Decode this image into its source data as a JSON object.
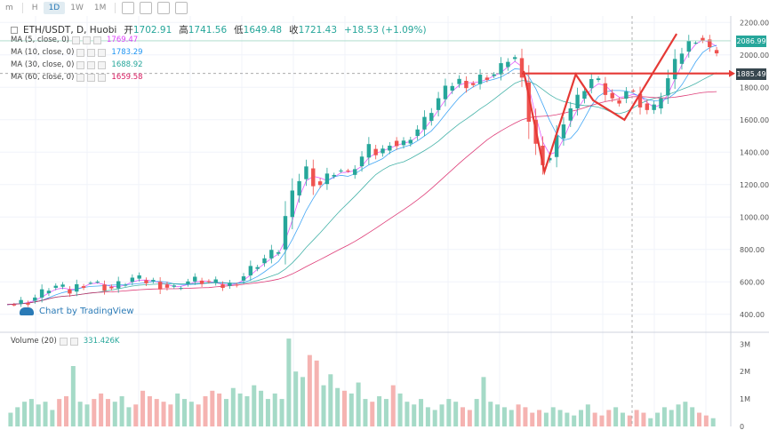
{
  "toolbar": {
    "items": [
      "m",
      "H",
      "1D",
      "1W",
      "1M"
    ],
    "active": "1D"
  },
  "header": {
    "symbol": "ETH/USDT, D, Huobi",
    "open_label": "开",
    "open": "1702.91",
    "high_label": "高",
    "high": "1741.56",
    "low_label": "低",
    "low": "1649.48",
    "close_label": "收",
    "close": "1721.43",
    "change": "+18.53 (+1.09%)"
  },
  "indicators": [
    {
      "label": "MA (5, close, 0)",
      "value": "1769.47",
      "color": "#e040fb"
    },
    {
      "label": "MA (10, close, 0)",
      "value": "1783.29",
      "color": "#2196f3"
    },
    {
      "label": "MA (30, close, 0)",
      "value": "1688.92",
      "color": "#26a69a"
    },
    {
      "label": "MA (60, close, 0)",
      "value": "1659.58",
      "color": "#d81b60"
    }
  ],
  "watermark": "Chart by TradingView",
  "volume": {
    "label": "Volume (20)",
    "value": "331.426K"
  },
  "price_tags": {
    "current": "2086.99",
    "resistance": "1885.49"
  },
  "colors": {
    "up": "#26a69a",
    "down": "#ef5350",
    "vol_up": "#a5dac7",
    "vol_down": "#f5b3b1",
    "ma5": "#e040fb",
    "ma10": "#2196f3",
    "ma30": "#26a69a",
    "ma60": "#d81b60",
    "annotation": "#e53935",
    "crosshair": "#9e9e9e"
  },
  "chart_data": {
    "type": "candlestick",
    "ylim": [
      300,
      2240
    ],
    "yticks": [
      400,
      600,
      800,
      1000,
      1200,
      1400,
      1600,
      1800,
      2000,
      2200
    ],
    "ytick_labels": [
      "400.00",
      "600.00",
      "800.00",
      "1000.00",
      "1200.00",
      "1400.00",
      "1600.00",
      "1800.00",
      "2000.00",
      "2200.00"
    ],
    "vol_ticks": [
      0,
      1,
      2,
      3
    ],
    "vol_tick_labels": [
      "0",
      "1M",
      "2M",
      "3M"
    ],
    "vol_max": 3.3,
    "close_path": [
      [
        0,
        460
      ],
      [
        8,
        470
      ],
      [
        14,
        490
      ],
      [
        20,
        530
      ],
      [
        26,
        580
      ],
      [
        30,
        560
      ],
      [
        36,
        540
      ],
      [
        42,
        590
      ],
      [
        48,
        600
      ],
      [
        54,
        575
      ],
      [
        60,
        560
      ],
      [
        66,
        590
      ],
      [
        72,
        620
      ],
      [
        78,
        605
      ],
      [
        84,
        600
      ],
      [
        90,
        575
      ],
      [
        96,
        560
      ],
      [
        102,
        600
      ],
      [
        110,
        610
      ],
      [
        118,
        590
      ],
      [
        126,
        570
      ],
      [
        134,
        620
      ],
      [
        142,
        700
      ],
      [
        150,
        760
      ],
      [
        156,
        800
      ],
      [
        160,
        1000
      ],
      [
        166,
        1200
      ],
      [
        172,
        1300
      ],
      [
        178,
        1180
      ],
      [
        184,
        1250
      ],
      [
        190,
        1300
      ],
      [
        196,
        1260
      ],
      [
        202,
        1340
      ],
      [
        208,
        1420
      ],
      [
        214,
        1380
      ],
      [
        220,
        1470
      ],
      [
        226,
        1430
      ],
      [
        232,
        1500
      ],
      [
        238,
        1560
      ],
      [
        244,
        1660
      ],
      [
        250,
        1760
      ],
      [
        256,
        1820
      ],
      [
        262,
        1850
      ],
      [
        266,
        1800
      ],
      [
        270,
        1840
      ],
      [
        274,
        1880
      ],
      [
        278,
        1860
      ],
      [
        282,
        1900
      ],
      [
        286,
        1950
      ],
      [
        290,
        2000
      ],
      [
        294,
        1960
      ],
      [
        298,
        1700
      ],
      [
        302,
        1500
      ],
      [
        306,
        1380
      ],
      [
        310,
        1320
      ],
      [
        314,
        1420
      ],
      [
        318,
        1550
      ],
      [
        322,
        1640
      ],
      [
        326,
        1700
      ],
      [
        330,
        1760
      ],
      [
        334,
        1830
      ],
      [
        338,
        1860
      ],
      [
        342,
        1790
      ],
      [
        346,
        1740
      ],
      [
        350,
        1700
      ],
      [
        354,
        1760
      ],
      [
        358,
        1800
      ],
      [
        362,
        1720
      ],
      [
        366,
        1680
      ],
      [
        370,
        1640
      ],
      [
        374,
        1700
      ],
      [
        378,
        1800
      ],
      [
        382,
        1900
      ],
      [
        386,
        1990
      ],
      [
        390,
        2050
      ],
      [
        394,
        2100
      ],
      [
        398,
        2110
      ],
      [
        402,
        2080
      ],
      [
        406,
        1980
      ],
      [
        410,
        2087
      ]
    ],
    "volume": [
      0.5,
      0.7,
      0.9,
      1.0,
      0.8,
      0.9,
      0.6,
      1.0,
      1.1,
      2.2,
      0.9,
      0.8,
      1.0,
      1.2,
      1.0,
      0.9,
      1.1,
      0.7,
      0.8,
      1.3,
      1.1,
      1.0,
      0.9,
      0.8,
      1.2,
      1.0,
      0.9,
      0.8,
      1.1,
      1.3,
      1.2,
      1.0,
      1.4,
      1.2,
      1.1,
      1.5,
      1.3,
      1.0,
      1.2,
      1.0,
      3.2,
      2.0,
      1.8,
      2.6,
      2.4,
      1.5,
      1.9,
      1.4,
      1.3,
      1.2,
      1.6,
      1.0,
      0.9,
      1.1,
      1.0,
      1.5,
      1.2,
      0.9,
      0.8,
      1.0,
      0.7,
      0.6,
      0.8,
      1.0,
      0.9,
      0.7,
      0.6,
      1.0,
      1.8,
      0.9,
      0.8,
      0.7,
      0.6,
      0.8,
      0.7,
      0.5,
      0.6,
      0.5,
      0.7,
      0.6,
      0.5,
      0.4,
      0.6,
      0.8,
      0.5,
      0.4,
      0.6,
      0.7,
      0.5,
      0.4,
      0.6,
      0.5,
      0.3,
      0.5,
      0.7,
      0.6,
      0.8,
      0.9,
      0.7,
      0.5,
      0.4,
      0.3
    ],
    "annotation_path": [
      [
        297,
        1900
      ],
      [
        309,
        1280
      ],
      [
        327,
        1880
      ],
      [
        337,
        1720
      ],
      [
        355,
        1600
      ],
      [
        385,
        2130
      ]
    ],
    "annotation_hline": 1885.49,
    "annotation_hline_from": 296
  }
}
